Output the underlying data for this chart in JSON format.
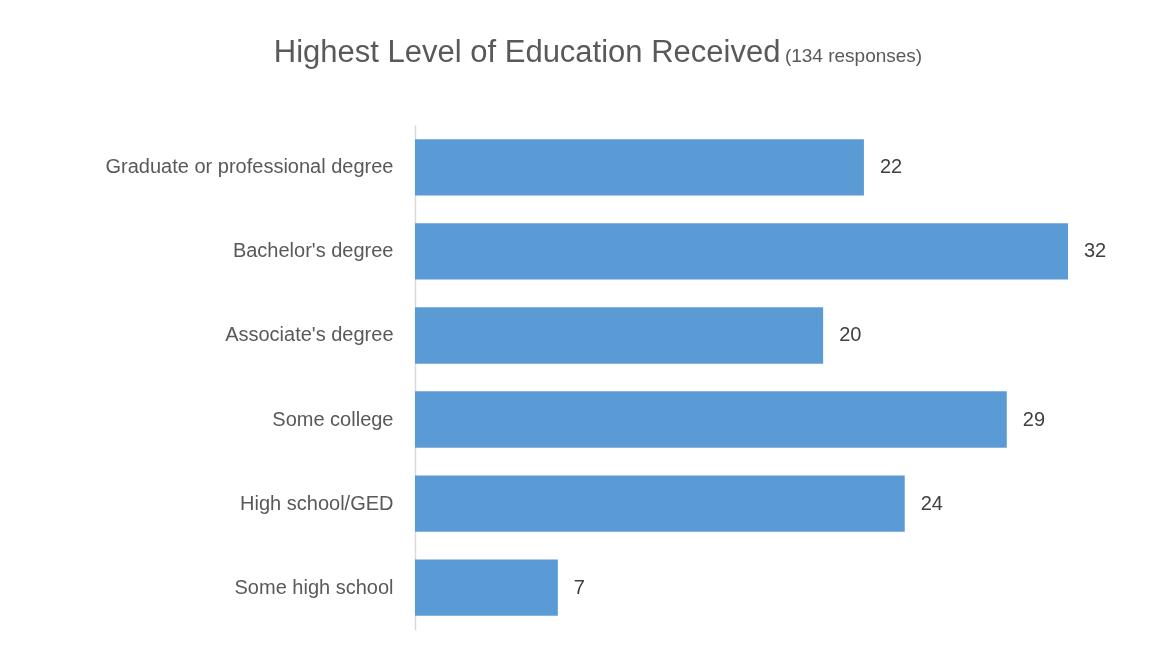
{
  "chart_data": {
    "type": "bar",
    "orientation": "horizontal",
    "title": "Highest Level of Education Received",
    "subtitle": "(134 responses)",
    "categories": [
      "Graduate or professional degree",
      "Bachelor's degree",
      "Associate's degree",
      "Some college",
      "High school/GED",
      "Some high school"
    ],
    "values": [
      22,
      32,
      20,
      29,
      24,
      7
    ],
    "color": "#5b9bd5",
    "data_labels": true
  }
}
